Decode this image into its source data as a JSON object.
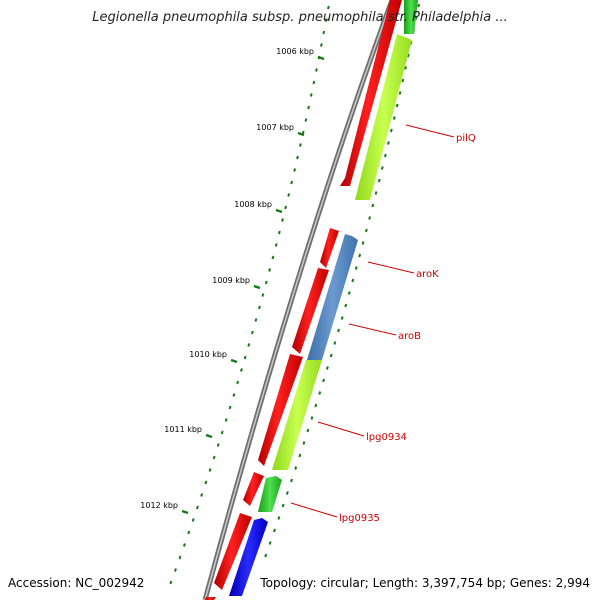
{
  "title": "Legionella pneumophila subsp. pneumophila str. Philadelphia ...",
  "accession_text": "Accession: NC_002942",
  "summary_text": "Topology: circular; Length: 3,397,754 bp; Genes: 2,994",
  "scale_ticks": [
    "1006 kbp",
    "1007 kbp",
    "1008 kbp",
    "1009 kbp",
    "1010 kbp",
    "1011 kbp",
    "1012 kbp"
  ],
  "gene_labels": [
    "pilQ",
    "aroK",
    "aroB",
    "lpg0934",
    "lpg0935"
  ],
  "colors": {
    "backbone": "#8a8a8a",
    "forward_cds": "#ff0000",
    "reverse_cds_yellowgreen": "#a8f028",
    "reverse_cds_steelblue": "#4f83c0",
    "reverse_cds_green": "#2ec02e",
    "reverse_cds_blue": "#0000ff",
    "tick_marks": "#1a7a1a",
    "label_lines": "#cc0000"
  }
}
